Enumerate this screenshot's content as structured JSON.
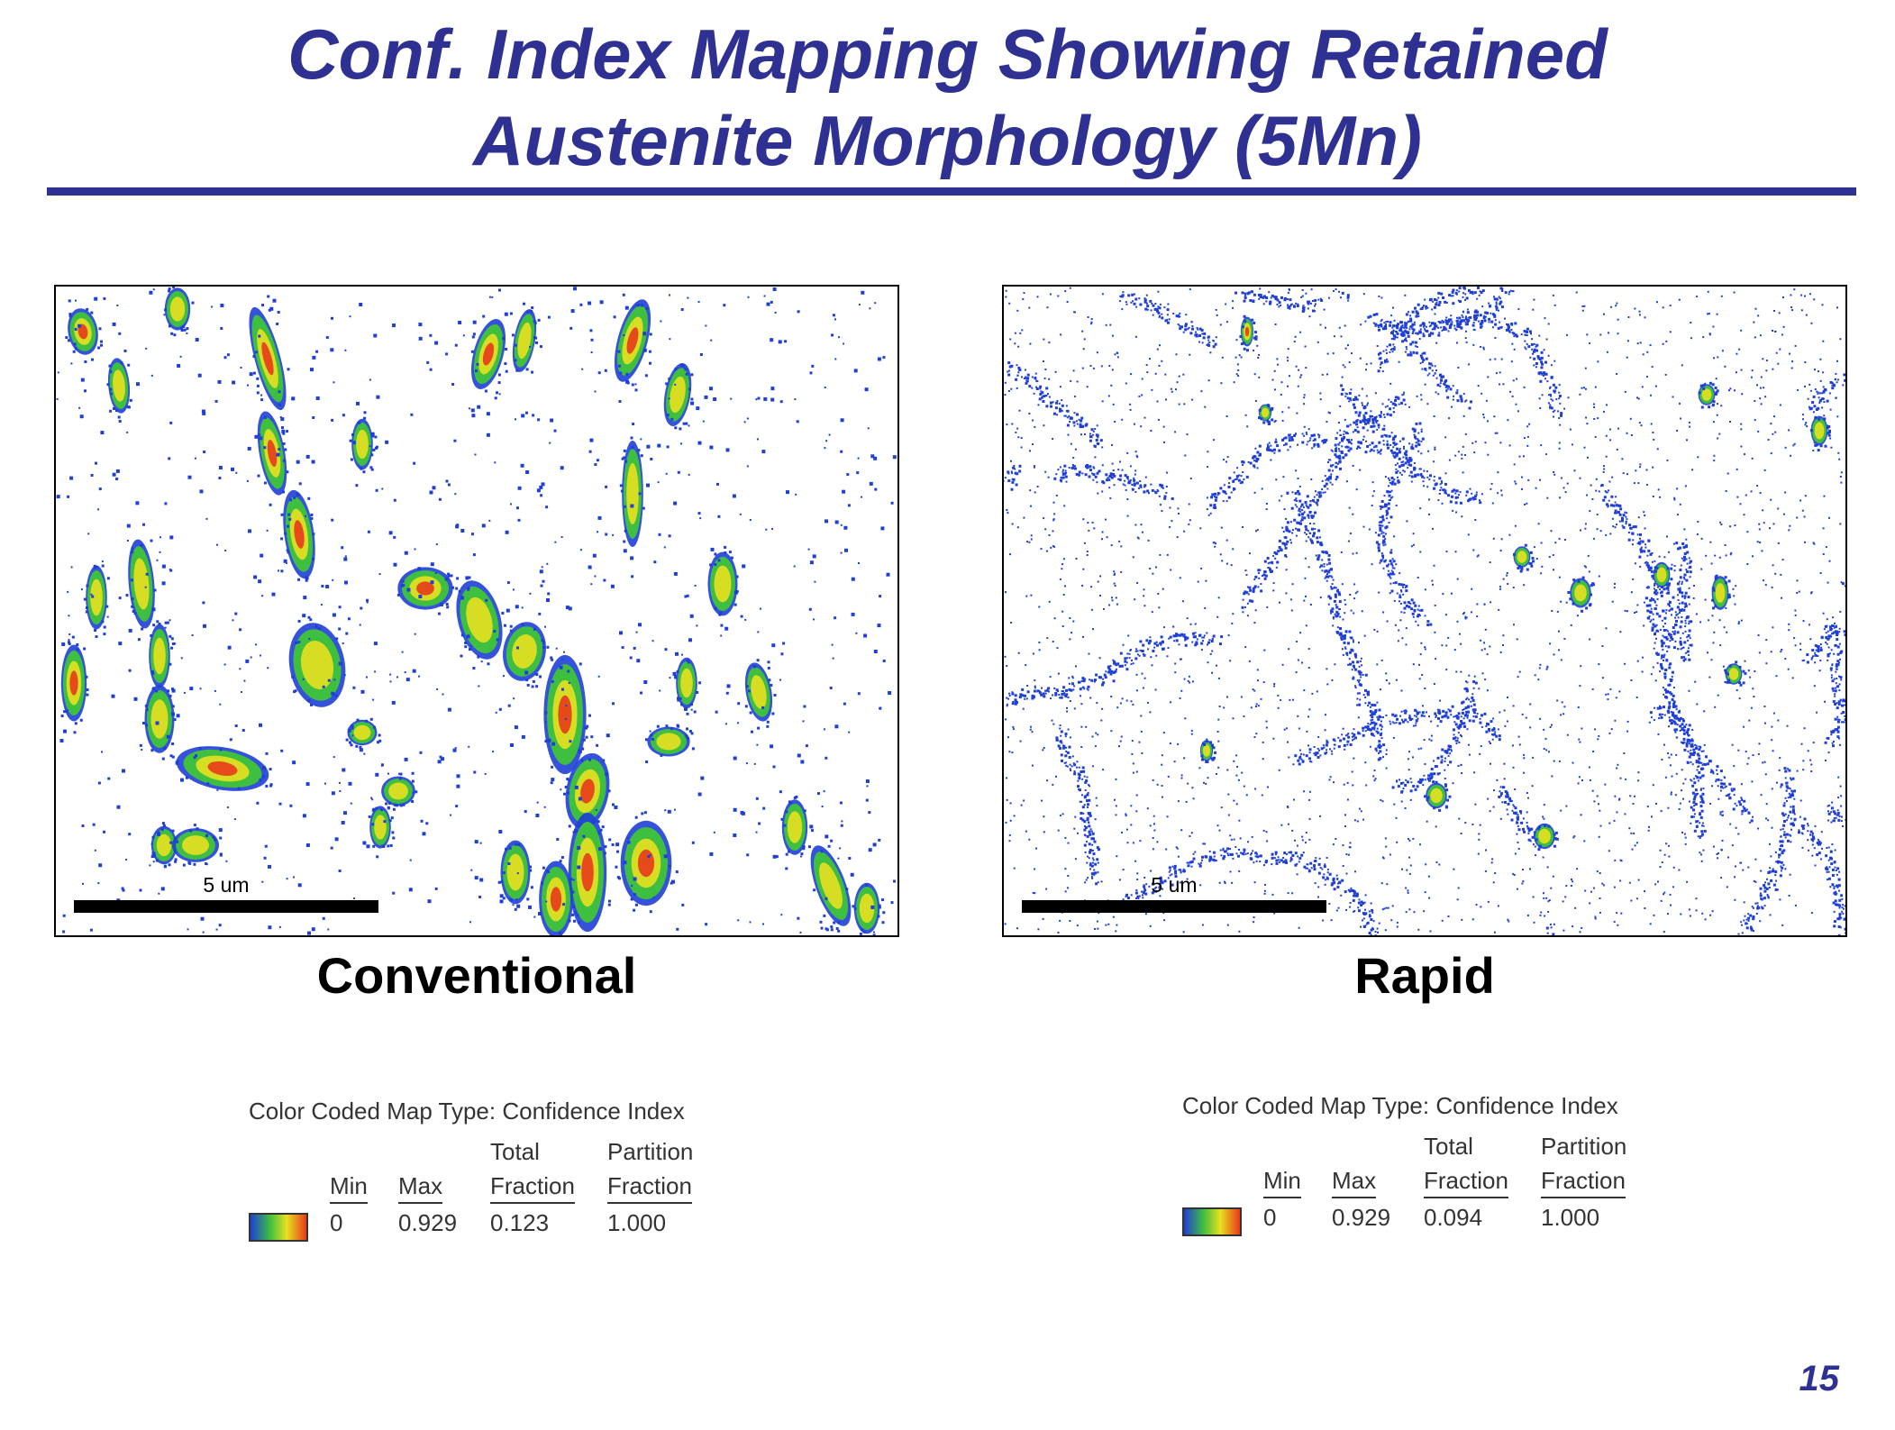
{
  "slide": {
    "title_line1": "Conf. Index Mapping Showing Retained",
    "title_line2": "Austenite Morphology (5Mn)",
    "page_number": "15"
  },
  "colors": {
    "title": "#2e3192",
    "ci_low": "#1f3fd6",
    "ci_mid": "#3fbf3f",
    "ci_high_mid": "#e8e020",
    "ci_high": "#e83a1a"
  },
  "panels": [
    {
      "id": "conventional",
      "caption": "Conventional",
      "scale_bar_label": "5 um",
      "legend": {
        "title": "Color Coded Map Type: Confidence Index",
        "columns": [
          {
            "header_top": "",
            "header": "Min",
            "value": "0"
          },
          {
            "header_top": "",
            "header": "Max",
            "value": "0.929"
          },
          {
            "header_top": "Total",
            "header": "Fraction",
            "value": "0.123"
          },
          {
            "header_top": "Partition",
            "header": "Fraction",
            "value": "1.000"
          }
        ]
      }
    },
    {
      "id": "rapid",
      "caption": "Rapid",
      "scale_bar_label": "5 um",
      "legend": {
        "title": "Color Coded Map Type: Confidence Index",
        "columns": [
          {
            "header_top": "",
            "header": "Min",
            "value": "0"
          },
          {
            "header_top": "",
            "header": "Max",
            "value": "0.929"
          },
          {
            "header_top": "Total",
            "header": "Fraction",
            "value": "0.094"
          },
          {
            "header_top": "Partition",
            "header": "Fraction",
            "value": "1.000"
          }
        ]
      }
    }
  ]
}
